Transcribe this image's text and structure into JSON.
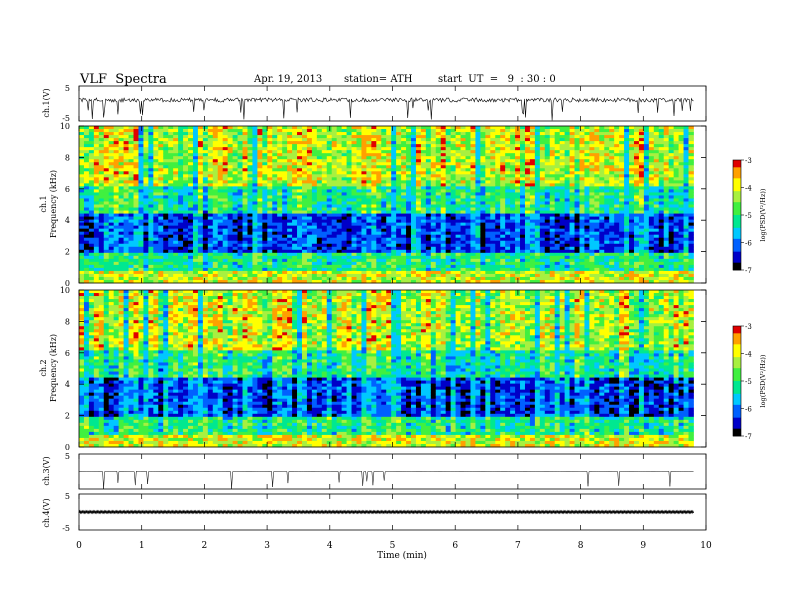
{
  "header": {
    "title": "VLF  Spectra",
    "date": "Apr. 19, 2013",
    "station": "station= ATH",
    "start_ut": "start  UT  =   9  : 30 : 0"
  },
  "chart_data": [
    {
      "type": "line",
      "panel": "ch1-waveform",
      "ylabel": "ch.1(V)",
      "ylim": [
        -5,
        5
      ],
      "yticks": [
        "5",
        "-5"
      ],
      "baseline_v": 1.0,
      "x_extent_min": [
        0,
        9.8
      ],
      "color": "#000000"
    },
    {
      "type": "heatmap",
      "panel": "ch1-spectrogram",
      "ylabel": "Frequency (kHz)",
      "channel_label": "ch.1",
      "ylim": [
        0,
        10
      ],
      "yticks": [
        0,
        2,
        4,
        6,
        8,
        10
      ],
      "xlim_min": [
        0,
        9.8
      ],
      "colorbar": {
        "label": "log(PSD(V²/Hz))",
        "range": [
          -7,
          -3
        ],
        "ticks": [
          "-3",
          "-4",
          "-5",
          "-6",
          "-7"
        ]
      }
    },
    {
      "type": "heatmap",
      "panel": "ch2-spectrogram",
      "ylabel": "Frequency (kHz)",
      "channel_label": "ch.2",
      "ylim": [
        0,
        10
      ],
      "yticks": [
        0,
        2,
        4,
        6,
        8,
        10
      ],
      "xlim_min": [
        0,
        9.8
      ],
      "colorbar": {
        "label": "log(PSD(V²/Hz))",
        "range": [
          -7,
          -3
        ],
        "ticks": [
          "-3",
          "-4",
          "-5",
          "-6",
          "-7"
        ]
      }
    },
    {
      "type": "line",
      "panel": "ch3-waveform",
      "ylabel": "ch.3(V)",
      "ylim": [
        -5,
        5
      ],
      "yticks": [
        "5"
      ],
      "baseline_v": 0,
      "x_extent_min": [
        0,
        9.8
      ],
      "color": "#000000"
    },
    {
      "type": "line",
      "panel": "ch4-waveform",
      "ylabel": "ch.4(V)",
      "ylim": [
        -5,
        5
      ],
      "yticks": [
        "5",
        "-5"
      ],
      "baseline_v": 0,
      "x_extent_min": [
        0,
        9.8
      ],
      "color": "#000000"
    }
  ],
  "xaxis": {
    "label": "Time  (min)",
    "xlim": [
      0,
      10
    ],
    "ticks": [
      "0",
      "1",
      "2",
      "3",
      "4",
      "5",
      "6",
      "7",
      "8",
      "9",
      "10"
    ]
  },
  "colormap": [
    "#000000",
    "#0000c8",
    "#0060ff",
    "#00c8ff",
    "#00e890",
    "#40f040",
    "#a8f040",
    "#ffff00",
    "#ffa000",
    "#e00000",
    "#ffffff"
  ]
}
